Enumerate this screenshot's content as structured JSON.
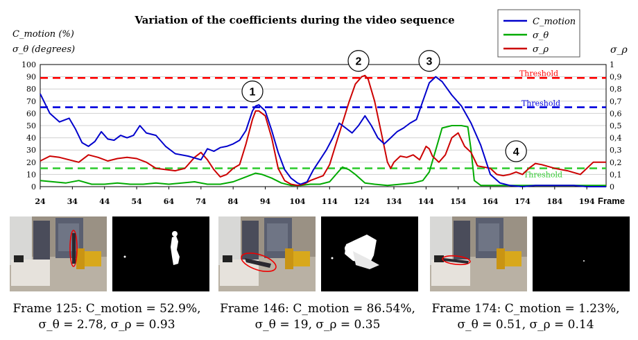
{
  "chart_data": {
    "type": "line",
    "title": "Variation of the coefficients during the video sequence",
    "ylabel_left": [
      "C_motion (%)",
      "σ_θ (degrees)"
    ],
    "ylabel_right": "σ_ρ",
    "xlabel": "Frame",
    "xlim": [
      24,
      200
    ],
    "ylim_left": [
      0,
      100
    ],
    "ylim_right": [
      0,
      1
    ],
    "x_ticks": [
      24,
      34,
      44,
      54,
      64,
      74,
      84,
      94,
      104,
      114,
      124,
      134,
      144,
      154,
      164,
      174,
      184,
      194
    ],
    "y_ticks_left": [
      "0",
      "10",
      "20",
      "30",
      "40",
      "50",
      "60",
      "70",
      "80",
      "90",
      "100"
    ],
    "y_ticks_right": [
      "0",
      "0,1",
      "0,2",
      "0,3",
      "0,4",
      "0,5",
      "0,6",
      "0,7",
      "0,8",
      "0,9",
      "1"
    ],
    "legend_position": "top-right",
    "series": [
      {
        "name": "C_motion",
        "color": "#0000cc",
        "x": [
          24,
          27,
          30,
          33,
          35,
          37,
          39,
          41,
          43,
          45,
          47,
          49,
          51,
          53,
          55,
          57,
          60,
          63,
          66,
          70,
          74,
          76,
          78,
          80,
          82,
          84,
          86,
          88,
          90,
          91,
          92,
          94,
          96,
          98,
          100,
          102,
          104,
          105,
          107,
          109,
          111,
          113,
          115,
          117,
          119,
          121,
          123,
          125,
          127,
          129,
          131,
          133,
          135,
          137,
          139,
          141,
          143,
          145,
          147,
          149,
          152,
          155,
          158,
          161,
          164,
          167,
          170,
          174,
          178,
          182,
          186,
          190,
          194,
          198,
          200
        ],
        "values": [
          76,
          60,
          53,
          56,
          47,
          36,
          33,
          37,
          45,
          39,
          38,
          42,
          40,
          42,
          50,
          44,
          42,
          33,
          27,
          25,
          22,
          31,
          29,
          32,
          33,
          35,
          38,
          46,
          62,
          66,
          67,
          62,
          46,
          28,
          14,
          7,
          3,
          2,
          4,
          14,
          22,
          30,
          40,
          52,
          48,
          44,
          50,
          58,
          50,
          40,
          35,
          40,
          45,
          48,
          52,
          55,
          70,
          85,
          90,
          86,
          75,
          66,
          52,
          34,
          10,
          3,
          1,
          0,
          1,
          1,
          1,
          1,
          0,
          0,
          0
        ]
      },
      {
        "name": "σ_θ",
        "color": "#00aa00",
        "x": [
          24,
          28,
          32,
          36,
          40,
          44,
          48,
          52,
          56,
          60,
          64,
          68,
          72,
          76,
          80,
          84,
          88,
          91,
          93,
          96,
          99,
          102,
          105,
          108,
          111,
          114,
          116,
          118,
          120,
          122,
          125,
          128,
          132,
          136,
          140,
          143,
          145,
          147,
          149,
          152,
          155,
          157,
          158,
          159,
          161,
          165,
          170,
          175,
          180,
          190,
          200
        ],
        "values": [
          5,
          4,
          3,
          5,
          2,
          2,
          3,
          2,
          2,
          3,
          2,
          3,
          4,
          2,
          2,
          4,
          8,
          11,
          10,
          7,
          3,
          1,
          1,
          2,
          2,
          4,
          10,
          16,
          14,
          10,
          3,
          2,
          1,
          2,
          3,
          5,
          12,
          30,
          48,
          50,
          50,
          49,
          30,
          5,
          1,
          1,
          1,
          1,
          1,
          1,
          1
        ]
      },
      {
        "name": "σ_ρ",
        "color": "#cc0000",
        "x": [
          24,
          27,
          30,
          33,
          36,
          39,
          42,
          45,
          48,
          51,
          54,
          57,
          60,
          63,
          66,
          69,
          72,
          74,
          76,
          78,
          80,
          82,
          84,
          86,
          88,
          90,
          91,
          92,
          94,
          96,
          98,
          100,
          102,
          104,
          106,
          108,
          110,
          112,
          114,
          116,
          118,
          120,
          122,
          124,
          125,
          126,
          128,
          130,
          132,
          133,
          134,
          136,
          138,
          140,
          142,
          144,
          145,
          146,
          148,
          150,
          152,
          154,
          156,
          158,
          160,
          162,
          164,
          166,
          168,
          170,
          172,
          174,
          176,
          178,
          180,
          184,
          188,
          192,
          196,
          200
        ],
        "values": [
          0.21,
          0.25,
          0.24,
          0.22,
          0.2,
          0.26,
          0.24,
          0.21,
          0.23,
          0.24,
          0.23,
          0.2,
          0.15,
          0.14,
          0.13,
          0.15,
          0.24,
          0.28,
          0.22,
          0.14,
          0.08,
          0.1,
          0.15,
          0.18,
          0.35,
          0.55,
          0.62,
          0.62,
          0.58,
          0.4,
          0.15,
          0.05,
          0.02,
          0.01,
          0.02,
          0.05,
          0.07,
          0.09,
          0.18,
          0.35,
          0.52,
          0.69,
          0.84,
          0.9,
          0.91,
          0.88,
          0.7,
          0.45,
          0.2,
          0.15,
          0.2,
          0.25,
          0.24,
          0.26,
          0.22,
          0.33,
          0.31,
          0.25,
          0.2,
          0.26,
          0.4,
          0.44,
          0.33,
          0.28,
          0.17,
          0.16,
          0.15,
          0.1,
          0.09,
          0.1,
          0.12,
          0.1,
          0.15,
          0.19,
          0.18,
          0.15,
          0.13,
          0.1,
          0.2,
          0.2
        ]
      }
    ],
    "thresholds": [
      {
        "label": "Threshold",
        "axis": "right",
        "value": 0.89,
        "color": "#ff0000"
      },
      {
        "label": "Threshold",
        "axis": "left",
        "value": 65,
        "color": "#0000dd"
      },
      {
        "label": "Threshold",
        "axis": "left",
        "value": 15,
        "color": "#33cc33"
      }
    ],
    "annotations": [
      {
        "label": "1",
        "x": 90,
        "y": 78
      },
      {
        "label": "2",
        "x": 123,
        "y": 103
      },
      {
        "label": "3",
        "x": 145,
        "y": 103
      },
      {
        "label": "4",
        "x": 172,
        "y": 29
      }
    ]
  },
  "frames": [
    {
      "caption_line1": "Frame 125: C_motion = 52.9%,",
      "caption_line2": "σ_θ = 2.78, σ_ρ = 0.93"
    },
    {
      "caption_line1": "Frame 146: C_motion = 86.54%,",
      "caption_line2": "σ_θ = 19, σ_ρ = 0.35"
    },
    {
      "caption_line1": "Frame 174: C_motion = 1.23%,",
      "caption_line2": "σ_θ = 0.51, σ_ρ = 0.14"
    }
  ]
}
